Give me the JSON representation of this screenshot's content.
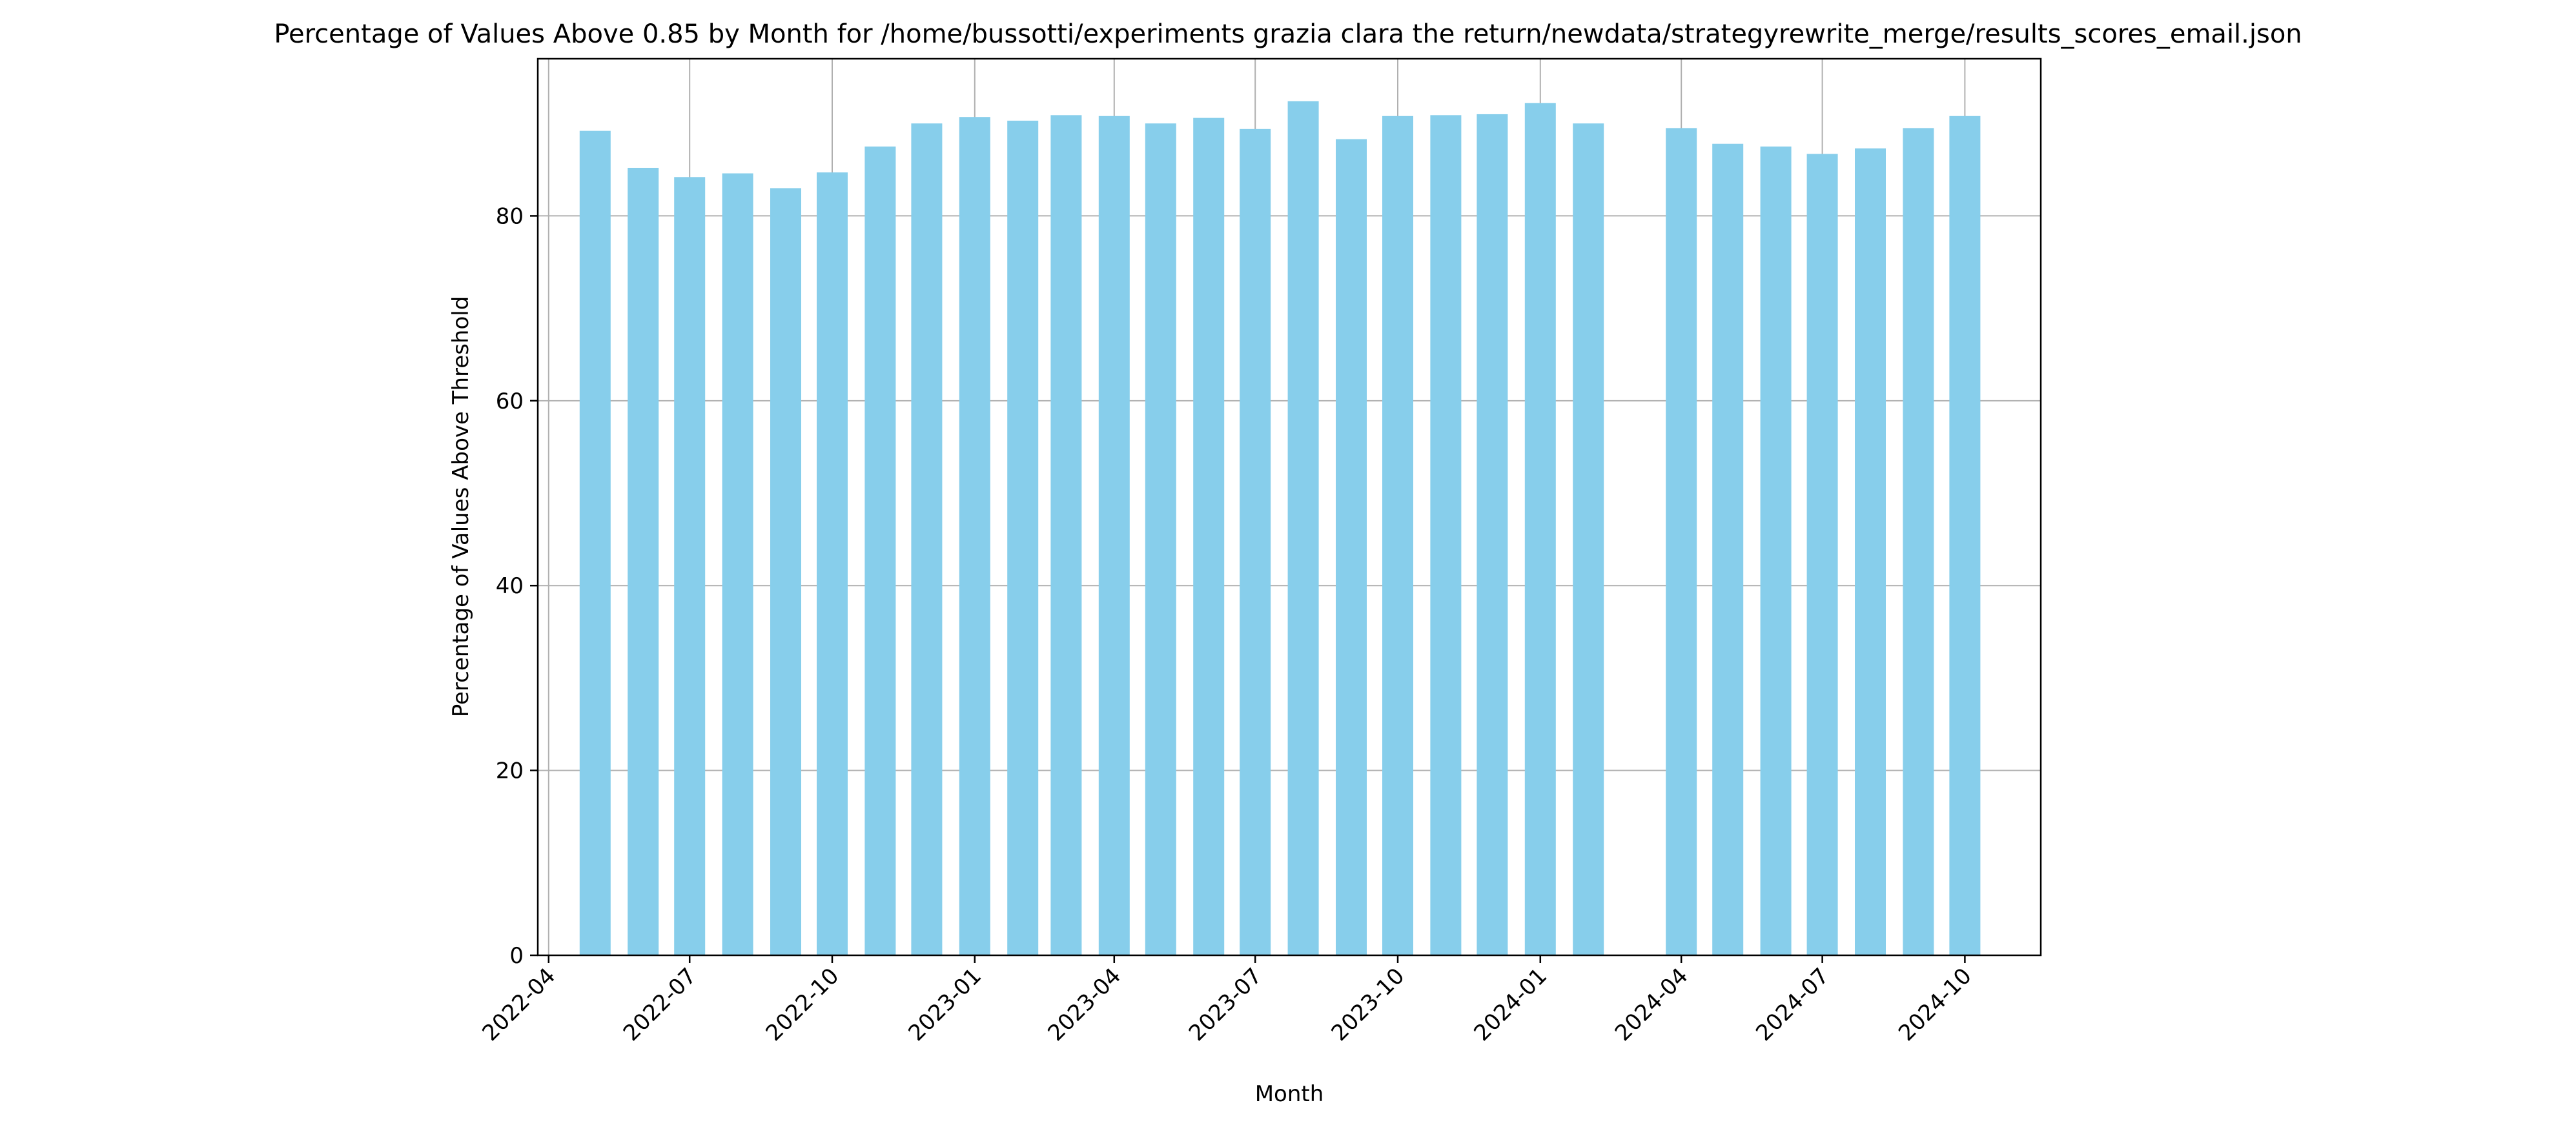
{
  "chart_data": {
    "type": "bar",
    "title": "Percentage of Values Above 0.85 by Month for /home/bussotti/experiments grazia clara the return/newdata/strategyrewrite_merge/results_scores_email.json",
    "xlabel": "Month",
    "ylabel": "Percentage of Values Above Threshold",
    "ylim": [
      0,
      97
    ],
    "xlim": [
      "2022-03-25",
      "2024-11-19"
    ],
    "y_ticks": [
      0,
      20,
      40,
      60,
      80
    ],
    "x_ticks": [
      "2022-04",
      "2022-07",
      "2022-10",
      "2023-01",
      "2023-04",
      "2023-07",
      "2023-10",
      "2024-01",
      "2024-04",
      "2024-07",
      "2024-10"
    ],
    "grid": true,
    "bar_color": "#87ceeb",
    "bars": [
      {
        "month": "2022-05",
        "value": 89.2
      },
      {
        "month": "2022-06",
        "value": 85.2
      },
      {
        "month": "2022-07",
        "value": 84.2
      },
      {
        "month": "2022-08",
        "value": 84.6
      },
      {
        "month": "2022-09",
        "value": 83.0
      },
      {
        "month": "2022-10",
        "value": 84.7
      },
      {
        "month": "2022-11",
        "value": 87.5
      },
      {
        "month": "2022-12",
        "value": 90.0
      },
      {
        "month": "2023-01",
        "value": 90.7
      },
      {
        "month": "2023-02",
        "value": 90.3
      },
      {
        "month": "2023-03",
        "value": 90.9
      },
      {
        "month": "2023-04",
        "value": 90.8
      },
      {
        "month": "2023-05",
        "value": 90.0
      },
      {
        "month": "2023-06",
        "value": 90.6
      },
      {
        "month": "2023-07",
        "value": 89.4
      },
      {
        "month": "2023-08",
        "value": 92.4
      },
      {
        "month": "2023-09",
        "value": 88.3
      },
      {
        "month": "2023-10",
        "value": 90.8
      },
      {
        "month": "2023-11",
        "value": 90.9
      },
      {
        "month": "2023-12",
        "value": 91.0
      },
      {
        "month": "2024-01",
        "value": 92.2
      },
      {
        "month": "2024-02",
        "value": 90.0
      },
      {
        "month": "2024-04",
        "value": 89.5
      },
      {
        "month": "2024-05",
        "value": 87.8
      },
      {
        "month": "2024-06",
        "value": 87.5
      },
      {
        "month": "2024-07",
        "value": 86.7
      },
      {
        "month": "2024-08",
        "value": 87.3
      },
      {
        "month": "2024-09",
        "value": 89.5
      },
      {
        "month": "2024-10",
        "value": 90.8
      }
    ]
  }
}
